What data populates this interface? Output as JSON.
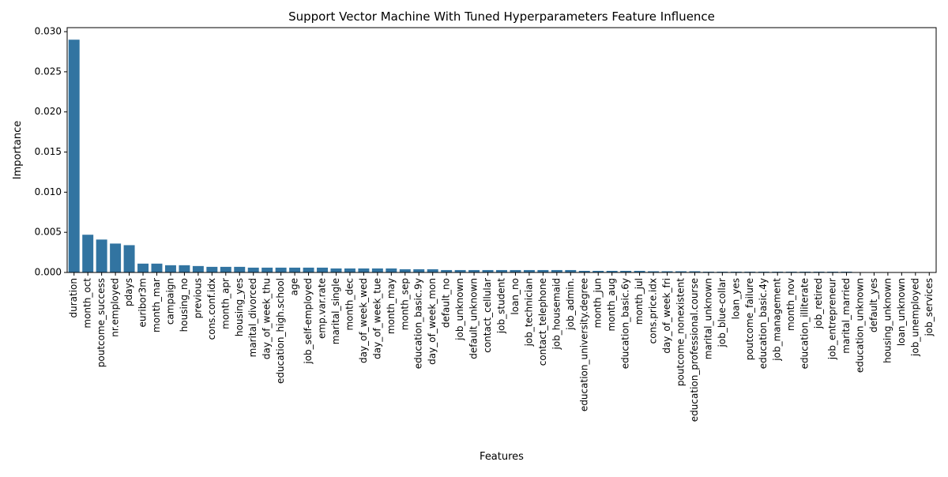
{
  "chart_data": {
    "type": "bar",
    "title": "Support Vector Machine With Tuned Hyperparameters Feature Influence",
    "xlabel": "Features",
    "ylabel": "Importance",
    "ylim": [
      0,
      0.0305
    ],
    "yticks": [
      0.0,
      0.005,
      0.01,
      0.015,
      0.02,
      0.025,
      0.03
    ],
    "ytick_labels": [
      "0.000",
      "0.005",
      "0.010",
      "0.015",
      "0.020",
      "0.025",
      "0.030"
    ],
    "grid": false,
    "bar_color": "#3274a1",
    "categories": [
      "duration",
      "month_oct",
      "poutcome_success",
      "nr.employed",
      "pdays",
      "euribor3m",
      "month_mar",
      "campaign",
      "housing_no",
      "previous",
      "cons.conf.idx",
      "month_apr",
      "housing_yes",
      "marital_divorced",
      "day_of_week_thu",
      "education_high.school",
      "age",
      "job_self-employed",
      "emp.var.rate",
      "marital_single",
      "month_dec",
      "day_of_week_wed",
      "day_of_week_tue",
      "month_may",
      "month_sep",
      "education_basic.9y",
      "day_of_week_mon",
      "default_no",
      "job_unknown",
      "default_unknown",
      "contact_cellular",
      "job_student",
      "loan_no",
      "job_technician",
      "contact_telephone",
      "job_housemaid",
      "job_admin.",
      "education_university.degree",
      "month_jun",
      "month_aug",
      "education_basic.6y",
      "month_jul",
      "cons.price.idx",
      "day_of_week_fri",
      "poutcome_nonexistent",
      "education_professional.course",
      "marital_unknown",
      "job_blue-collar",
      "loan_yes",
      "poutcome_failure",
      "education_basic.4y",
      "job_management",
      "month_nov",
      "education_illiterate",
      "job_retired",
      "job_entrepreneur",
      "marital_married",
      "education_unknown",
      "default_yes",
      "housing_unknown",
      "loan_unknown",
      "job_unemployed",
      "job_services"
    ],
    "values": [
      0.029,
      0.0047,
      0.0041,
      0.0036,
      0.0034,
      0.0011,
      0.0011,
      0.0009,
      0.0009,
      0.0008,
      0.0007,
      0.0007,
      0.0007,
      0.0006,
      0.0006,
      0.0006,
      0.0006,
      0.0006,
      0.0006,
      0.0005,
      0.0005,
      0.0005,
      0.0005,
      0.0005,
      0.0004,
      0.0004,
      0.0004,
      0.0003,
      0.0003,
      0.0003,
      0.0003,
      0.0003,
      0.0003,
      0.0003,
      0.0003,
      0.0003,
      0.0003,
      0.0002,
      0.0002,
      0.0002,
      0.0002,
      0.0002,
      0.00015,
      0.00015,
      0.00015,
      0.00015,
      0.0001,
      0.0001,
      0.0001,
      0.0001,
      0.0001,
      0.0001,
      0.0001,
      0.0001,
      0.0001,
      0.0001,
      0.0001,
      5e-05,
      3e-05,
      2e-05,
      1e-05,
      1e-05,
      0.0
    ]
  }
}
